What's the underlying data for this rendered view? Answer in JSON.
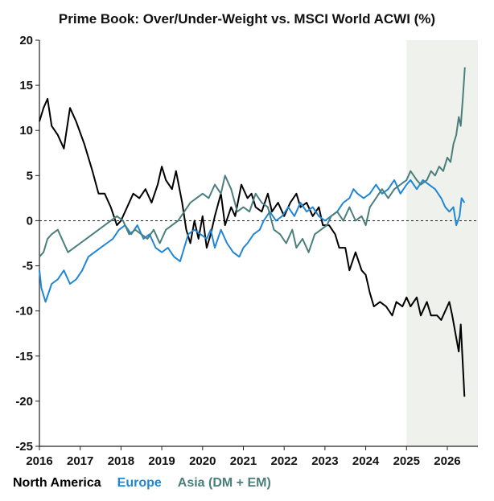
{
  "chart_data": {
    "type": "line",
    "title": "Prime Book: Over/Under-Weight vs. MSCI World ACWI (%)",
    "xlabel": "",
    "ylabel": "",
    "xlim": [
      2016.0,
      2026.75
    ],
    "ylim": [
      -25,
      20
    ],
    "y_ticks": [
      -25,
      -20,
      -15,
      -10,
      -5,
      0,
      5,
      10,
      15,
      20
    ],
    "x_ticks": [
      2016,
      2017,
      2018,
      2019,
      2020,
      2021,
      2022,
      2023,
      2024,
      2025,
      2026
    ],
    "zero_line": "dashed",
    "shaded_region": {
      "x_start": 2025.0,
      "x_end": 2026.75,
      "color": "#eef1ec"
    },
    "grid": false,
    "legend_position": "bottom-left",
    "series": [
      {
        "name": "North America",
        "color": "#000000",
        "points": [
          [
            2016.0,
            11
          ],
          [
            2016.1,
            12.5
          ],
          [
            2016.2,
            13.5
          ],
          [
            2016.3,
            10.5
          ],
          [
            2016.45,
            9.5
          ],
          [
            2016.6,
            8
          ],
          [
            2016.75,
            12.5
          ],
          [
            2016.9,
            11
          ],
          [
            2017.1,
            8.5
          ],
          [
            2017.3,
            5.5
          ],
          [
            2017.45,
            3
          ],
          [
            2017.6,
            3
          ],
          [
            2017.75,
            1.5
          ],
          [
            2017.9,
            -0.5
          ],
          [
            2018.0,
            0
          ],
          [
            2018.15,
            1.5
          ],
          [
            2018.3,
            3
          ],
          [
            2018.45,
            2.5
          ],
          [
            2018.6,
            3.5
          ],
          [
            2018.75,
            2
          ],
          [
            2018.9,
            4
          ],
          [
            2019.0,
            6
          ],
          [
            2019.1,
            4.5
          ],
          [
            2019.25,
            3.5
          ],
          [
            2019.35,
            5.5
          ],
          [
            2019.5,
            2
          ],
          [
            2019.6,
            -1
          ],
          [
            2019.7,
            -2.5
          ],
          [
            2019.8,
            0
          ],
          [
            2019.9,
            -2
          ],
          [
            2020.0,
            0.5
          ],
          [
            2020.1,
            -3
          ],
          [
            2020.2,
            -1.5
          ],
          [
            2020.3,
            0.5
          ],
          [
            2020.45,
            3
          ],
          [
            2020.55,
            -0.5
          ],
          [
            2020.7,
            1.5
          ],
          [
            2020.8,
            0.5
          ],
          [
            2020.95,
            4
          ],
          [
            2021.1,
            2.5
          ],
          [
            2021.2,
            3
          ],
          [
            2021.3,
            1.5
          ],
          [
            2021.45,
            1
          ],
          [
            2021.6,
            3
          ],
          [
            2021.7,
            1
          ],
          [
            2021.85,
            2
          ],
          [
            2022.0,
            0.5
          ],
          [
            2022.15,
            2
          ],
          [
            2022.3,
            3
          ],
          [
            2022.4,
            1.5
          ],
          [
            2022.55,
            2
          ],
          [
            2022.7,
            0.5
          ],
          [
            2022.85,
            1.5
          ],
          [
            2022.95,
            -0.5
          ],
          [
            2023.1,
            -0.5
          ],
          [
            2023.25,
            -1.5
          ],
          [
            2023.35,
            -3
          ],
          [
            2023.5,
            -3
          ],
          [
            2023.6,
            -5.5
          ],
          [
            2023.75,
            -3.5
          ],
          [
            2023.9,
            -5.5
          ],
          [
            2024.0,
            -6
          ],
          [
            2024.1,
            -8
          ],
          [
            2024.2,
            -9.5
          ],
          [
            2024.35,
            -9
          ],
          [
            2024.5,
            -9.5
          ],
          [
            2024.65,
            -10.5
          ],
          [
            2024.75,
            -9
          ],
          [
            2024.9,
            -9.5
          ],
          [
            2025.0,
            -8.5
          ],
          [
            2025.1,
            -9.5
          ],
          [
            2025.25,
            -8.5
          ],
          [
            2025.35,
            -10.5
          ],
          [
            2025.5,
            -9
          ],
          [
            2025.6,
            -10.5
          ],
          [
            2025.75,
            -10.5
          ],
          [
            2025.85,
            -11
          ],
          [
            2025.95,
            -10
          ],
          [
            2026.05,
            -9
          ],
          [
            2026.12,
            -10.5
          ],
          [
            2026.2,
            -12.5
          ],
          [
            2026.28,
            -14.5
          ],
          [
            2026.33,
            -11.5
          ],
          [
            2026.37,
            -15
          ],
          [
            2026.42,
            -19.5
          ]
        ]
      },
      {
        "name": "Europe",
        "color": "#1f87d6",
        "points": [
          [
            2016.0,
            -5.5
          ],
          [
            2016.05,
            -7.5
          ],
          [
            2016.15,
            -9
          ],
          [
            2016.3,
            -7
          ],
          [
            2016.45,
            -6.5
          ],
          [
            2016.6,
            -5.5
          ],
          [
            2016.75,
            -7
          ],
          [
            2016.9,
            -6.5
          ],
          [
            2017.05,
            -5.5
          ],
          [
            2017.2,
            -4
          ],
          [
            2017.35,
            -3.5
          ],
          [
            2017.5,
            -3
          ],
          [
            2017.65,
            -2.5
          ],
          [
            2017.8,
            -2
          ],
          [
            2017.95,
            -1
          ],
          [
            2018.1,
            -0.5
          ],
          [
            2018.25,
            -1.5
          ],
          [
            2018.4,
            -0.5
          ],
          [
            2018.55,
            -2
          ],
          [
            2018.7,
            -1.5
          ],
          [
            2018.85,
            -3
          ],
          [
            2019.0,
            -3.5
          ],
          [
            2019.15,
            -3
          ],
          [
            2019.3,
            -4
          ],
          [
            2019.45,
            -4.5
          ],
          [
            2019.55,
            -3
          ],
          [
            2019.65,
            -1.5
          ],
          [
            2019.8,
            -1
          ],
          [
            2019.95,
            -1.5
          ],
          [
            2020.1,
            -2
          ],
          [
            2020.2,
            -1
          ],
          [
            2020.3,
            -3
          ],
          [
            2020.45,
            -1
          ],
          [
            2020.6,
            -2.5
          ],
          [
            2020.75,
            -3.5
          ],
          [
            2020.9,
            -4
          ],
          [
            2021.0,
            -3
          ],
          [
            2021.1,
            -2.5
          ],
          [
            2021.25,
            -1.5
          ],
          [
            2021.4,
            -1
          ],
          [
            2021.5,
            0
          ],
          [
            2021.65,
            1
          ],
          [
            2021.8,
            0
          ],
          [
            2021.95,
            0.5
          ],
          [
            2022.1,
            1.5
          ],
          [
            2022.25,
            0.5
          ],
          [
            2022.4,
            2
          ],
          [
            2022.55,
            1
          ],
          [
            2022.7,
            1.5
          ],
          [
            2022.85,
            0.5
          ],
          [
            2023.0,
            0
          ],
          [
            2023.15,
            0.5
          ],
          [
            2023.3,
            1
          ],
          [
            2023.45,
            2
          ],
          [
            2023.6,
            2.5
          ],
          [
            2023.7,
            3.5
          ],
          [
            2023.8,
            3
          ],
          [
            2023.95,
            2.5
          ],
          [
            2024.1,
            3
          ],
          [
            2024.25,
            4
          ],
          [
            2024.4,
            3
          ],
          [
            2024.55,
            3.5
          ],
          [
            2024.7,
            4.5
          ],
          [
            2024.85,
            3
          ],
          [
            2025.0,
            4
          ],
          [
            2025.1,
            4.5
          ],
          [
            2025.25,
            3.5
          ],
          [
            2025.4,
            4.5
          ],
          [
            2025.55,
            4
          ],
          [
            2025.7,
            3.5
          ],
          [
            2025.85,
            2.5
          ],
          [
            2025.95,
            1.5
          ],
          [
            2026.05,
            1
          ],
          [
            2026.15,
            1.5
          ],
          [
            2026.22,
            -0.5
          ],
          [
            2026.3,
            0.5
          ],
          [
            2026.35,
            2.5
          ],
          [
            2026.42,
            2
          ]
        ]
      },
      {
        "name": "Asia (DM + EM)",
        "color": "#4a7f7c",
        "points": [
          [
            2016.0,
            -4
          ],
          [
            2016.1,
            -3.5
          ],
          [
            2016.2,
            -2
          ],
          [
            2016.3,
            -1.5
          ],
          [
            2016.45,
            -1
          ],
          [
            2016.55,
            -2
          ],
          [
            2016.7,
            -3.5
          ],
          [
            2016.85,
            -3
          ],
          [
            2017.0,
            -2.5
          ],
          [
            2017.15,
            -2
          ],
          [
            2017.3,
            -1.5
          ],
          [
            2017.45,
            -1
          ],
          [
            2017.6,
            -0.5
          ],
          [
            2017.75,
            0
          ],
          [
            2017.9,
            0.5
          ],
          [
            2018.05,
            0
          ],
          [
            2018.2,
            -1.5
          ],
          [
            2018.35,
            -1
          ],
          [
            2018.5,
            -1.5
          ],
          [
            2018.65,
            -2
          ],
          [
            2018.8,
            -1
          ],
          [
            2018.95,
            -2.5
          ],
          [
            2019.1,
            -1
          ],
          [
            2019.25,
            -0.5
          ],
          [
            2019.4,
            0
          ],
          [
            2019.55,
            1
          ],
          [
            2019.7,
            2
          ],
          [
            2019.85,
            2.5
          ],
          [
            2020.0,
            3
          ],
          [
            2020.15,
            2.5
          ],
          [
            2020.3,
            4
          ],
          [
            2020.45,
            3
          ],
          [
            2020.55,
            5
          ],
          [
            2020.7,
            3.5
          ],
          [
            2020.85,
            1
          ],
          [
            2021.0,
            1.5
          ],
          [
            2021.15,
            1
          ],
          [
            2021.3,
            3
          ],
          [
            2021.45,
            2
          ],
          [
            2021.6,
            1.5
          ],
          [
            2021.75,
            -1
          ],
          [
            2021.9,
            -1.5
          ],
          [
            2022.05,
            -2.5
          ],
          [
            2022.2,
            -1
          ],
          [
            2022.3,
            -3
          ],
          [
            2022.45,
            -2
          ],
          [
            2022.6,
            -3.5
          ],
          [
            2022.75,
            -1.5
          ],
          [
            2022.9,
            -1
          ],
          [
            2023.05,
            -0.5
          ],
          [
            2023.15,
            0.5
          ],
          [
            2023.3,
            1
          ],
          [
            2023.45,
            0
          ],
          [
            2023.6,
            1.5
          ],
          [
            2023.75,
            0
          ],
          [
            2023.9,
            0.5
          ],
          [
            2024.0,
            -0.5
          ],
          [
            2024.1,
            1.5
          ],
          [
            2024.25,
            2.5
          ],
          [
            2024.4,
            3.5
          ],
          [
            2024.55,
            2.5
          ],
          [
            2024.7,
            3.5
          ],
          [
            2024.85,
            4
          ],
          [
            2025.0,
            4.5
          ],
          [
            2025.1,
            5.5
          ],
          [
            2025.25,
            4.5
          ],
          [
            2025.35,
            4
          ],
          [
            2025.5,
            4.5
          ],
          [
            2025.6,
            5.5
          ],
          [
            2025.7,
            5
          ],
          [
            2025.8,
            6
          ],
          [
            2025.9,
            5.5
          ],
          [
            2026.0,
            7
          ],
          [
            2026.08,
            6.5
          ],
          [
            2026.15,
            8.5
          ],
          [
            2026.22,
            9.5
          ],
          [
            2026.28,
            11.5
          ],
          [
            2026.33,
            10.5
          ],
          [
            2026.38,
            13.5
          ],
          [
            2026.43,
            17
          ]
        ]
      }
    ]
  }
}
